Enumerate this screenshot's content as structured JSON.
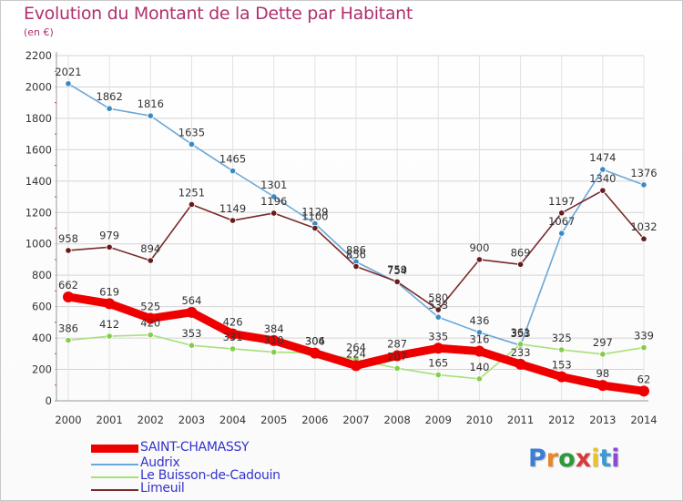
{
  "title": "Evolution du Montant de la Dette par Habitant",
  "subtitle": "(en €)",
  "logo": {
    "text": "Proxiti",
    "letter_colors": [
      "#3a7ed6",
      "#e8862a",
      "#2a9a3a",
      "#d63a3a",
      "#e8c42a",
      "#3a9ad6",
      "#8a4ad6"
    ]
  },
  "chart_data": {
    "type": "line",
    "x": [
      "2000",
      "2001",
      "2002",
      "2003",
      "2004",
      "2005",
      "2006",
      "2007",
      "2008",
      "2009",
      "2010",
      "2011",
      "2012",
      "2013",
      "2014"
    ],
    "ylim": [
      0,
      2200
    ],
    "yticks": [
      0,
      200,
      400,
      600,
      800,
      1000,
      1200,
      1400,
      1600,
      1800,
      2000,
      2200
    ],
    "grid": true,
    "legend_position": "bottom-left",
    "series": [
      {
        "name": "SAINT-CHAMASSY",
        "color": "#ee0000",
        "marker_color": "#ee0000",
        "emphasis": true,
        "values": [
          662,
          619,
          525,
          564,
          426,
          384,
          304,
          224,
          287,
          335,
          316,
          233,
          153,
          98,
          62
        ],
        "labels": [
          "662",
          "619",
          "525",
          "564",
          "426",
          "384",
          "304",
          "224",
          "287",
          "335",
          "316",
          "233",
          "153",
          "98",
          "62"
        ]
      },
      {
        "name": "Audrix",
        "color": "#6aa8d8",
        "marker_color": "#3c8ac4",
        "emphasis": false,
        "values": [
          2021,
          1862,
          1816,
          1635,
          1465,
          1301,
          1129,
          886,
          754,
          533,
          436,
          353,
          1067,
          1474,
          1376
        ],
        "labels": [
          "2021",
          "1862",
          "1816",
          "1635",
          "1465",
          "1301",
          "1129",
          "886",
          "754",
          "533",
          "436",
          "353",
          "1067",
          "1474",
          "1376"
        ]
      },
      {
        "name": "Le Buisson-de-Cadouin",
        "color": "#a8e07a",
        "marker_color": "#84cc4a",
        "emphasis": false,
        "values": [
          386,
          412,
          420,
          353,
          331,
          310,
          306,
          264,
          207,
          165,
          140,
          361,
          325,
          297,
          339
        ],
        "labels": [
          "386",
          "412",
          "420",
          "353",
          "331",
          "310",
          "306",
          "264",
          "207",
          "165",
          "140",
          "361",
          "325",
          "297",
          "339"
        ]
      },
      {
        "name": "Limeuil",
        "color": "#7a2a2a",
        "marker_color": "#6a1a1a",
        "emphasis": false,
        "values": [
          958,
          979,
          894,
          1251,
          1149,
          1196,
          1100,
          856,
          759,
          580,
          900,
          869,
          1197,
          1340,
          1032
        ],
        "labels": [
          "958",
          "979",
          "894",
          "1251",
          "1149",
          "1196",
          "1100",
          "856",
          "759",
          "580",
          "900",
          "869",
          "1197",
          "1340",
          "1032"
        ]
      }
    ]
  }
}
